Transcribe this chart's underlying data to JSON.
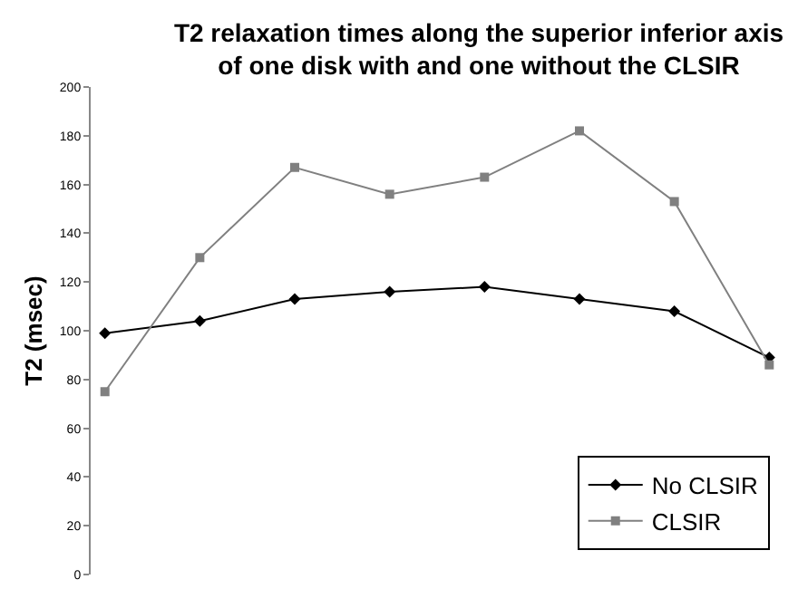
{
  "chart_data": {
    "type": "line",
    "title": "T2 relaxation times along the superior inferior axis\nof one disk with and one without the CLSIR",
    "ylabel": "T2 (msec)",
    "categories": [
      null,
      null,
      null,
      null,
      null,
      null,
      null,
      null
    ],
    "series": [
      {
        "name": "No CLSIR",
        "color": "#000000",
        "marker": "diamond",
        "values": [
          99,
          104,
          113,
          116,
          118,
          113,
          108,
          89
        ]
      },
      {
        "name": "CLSIR",
        "color": "#808080",
        "marker": "square",
        "values": [
          75,
          130,
          167,
          156,
          163,
          182,
          153,
          86
        ]
      }
    ],
    "ylim": [
      0,
      200
    ],
    "yticks": [
      0,
      20,
      40,
      60,
      80,
      100,
      120,
      140,
      160,
      180,
      200
    ],
    "grid": false,
    "legend": "bottom right",
    "line_style": "solid"
  }
}
